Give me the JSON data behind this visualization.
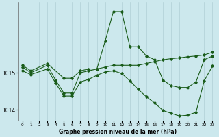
{
  "bg_color": "#cce8ed",
  "grid_color": "#b0cfd5",
  "line_color": "#1a5c1a",
  "xlabel": "Graphe pression niveau de la mer (hPa)",
  "xlim": [
    -0.5,
    23.5
  ],
  "ylim": [
    1013.7,
    1016.9
  ],
  "yticks": [
    1014,
    1015
  ],
  "xticks": [
    0,
    1,
    2,
    3,
    4,
    5,
    6,
    7,
    8,
    9,
    10,
    11,
    12,
    13,
    14,
    15,
    16,
    17,
    18,
    19,
    20,
    21,
    22,
    23
  ],
  "line1_x": [
    0,
    1,
    3,
    4,
    5,
    6,
    7,
    8,
    9,
    10,
    11,
    12,
    13,
    14,
    15,
    16,
    17,
    18,
    19,
    20,
    21,
    22,
    23
  ],
  "line1_y": [
    1015.15,
    1015.0,
    1015.2,
    1014.8,
    1014.45,
    1014.45,
    1015.0,
    1015.05,
    1015.1,
    1015.85,
    1016.65,
    1016.65,
    1015.7,
    1015.7,
    1015.45,
    1015.35,
    1014.8,
    1014.65,
    1014.6,
    1014.6,
    1014.75,
    1015.35,
    1015.45
  ],
  "line2_x": [
    0,
    1,
    3,
    5,
    6,
    7,
    8,
    9,
    10,
    11,
    12,
    13,
    14,
    15,
    16,
    17,
    18,
    19,
    20,
    21,
    22,
    23
  ],
  "line2_y": [
    1015.2,
    1015.05,
    1015.25,
    1014.85,
    1014.85,
    1015.05,
    1015.1,
    1015.1,
    1015.15,
    1015.2,
    1015.2,
    1015.2,
    1015.2,
    1015.25,
    1015.3,
    1015.35,
    1015.38,
    1015.4,
    1015.43,
    1015.45,
    1015.48,
    1015.55
  ],
  "line3_x": [
    0,
    1,
    3,
    4,
    5,
    6,
    7,
    8,
    9,
    10,
    11,
    12,
    13,
    14,
    15,
    16,
    17,
    18,
    19,
    20,
    21,
    22,
    23
  ],
  "line3_y": [
    1015.05,
    1014.95,
    1015.1,
    1014.72,
    1014.37,
    1014.37,
    1014.75,
    1014.82,
    1014.93,
    1015.02,
    1015.05,
    1014.98,
    1014.78,
    1014.55,
    1014.35,
    1014.18,
    1013.98,
    1013.9,
    1013.83,
    1013.85,
    1013.93,
    1014.78,
    1015.18
  ]
}
